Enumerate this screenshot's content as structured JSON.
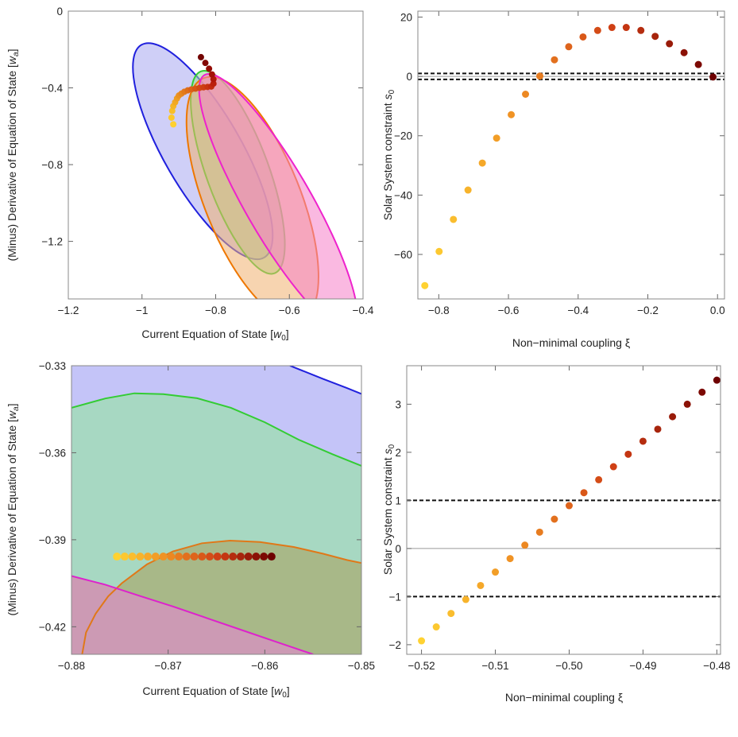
{
  "chart_data": [
    {
      "id": "p1",
      "type": "scatter",
      "xlabel": "Current Equation of State [w",
      "xlabel_sub": "0",
      "xlabel_end": "]",
      "ylabel": "(Minus) Derivative of Equation of State [w",
      "ylabel_sub": "a",
      "ylabel_end": "]",
      "xlim": [
        -1.2,
        -0.4
      ],
      "ylim": [
        -1.5,
        0
      ],
      "xticks": [
        -1.2,
        -1,
        -0.8,
        -0.6,
        -0.4
      ],
      "xtick_labels": [
        "−1.2",
        "−1",
        "−0.8",
        "−0.6",
        "−0.4"
      ],
      "yticks": [
        0,
        -0.4,
        -0.8,
        -1.2
      ],
      "ytick_labels": [
        "0",
        "−0.4",
        "−0.8",
        "−1.2"
      ],
      "grid": false,
      "contours": [
        {
          "name": "blue",
          "color": "#2020dd",
          "fill": "#a8a8f0",
          "cx": -0.835,
          "cy": -0.73,
          "rx": 0.105,
          "ry": 0.64,
          "angle_deg": 30
        },
        {
          "name": "green",
          "color": "#33cc33",
          "fill": "#99dd99",
          "cx": -0.74,
          "cy": -0.84,
          "rx": 0.085,
          "ry": 0.56,
          "angle_deg": 20
        },
        {
          "name": "orange",
          "color": "#ee7700",
          "fill": "#f0b070",
          "cx": -0.7,
          "cy": -0.98,
          "rx": 0.13,
          "ry": 0.68,
          "angle_deg": 22
        },
        {
          "name": "magenta",
          "color": "#ee22cc",
          "fill": "#f580c8",
          "cx": -0.63,
          "cy": -1.0,
          "rx": 0.09,
          "ry": 0.77,
          "angle_deg": 30
        }
      ],
      "points": [
        {
          "x": -0.915,
          "y": -0.59,
          "c": "#ffd030"
        },
        {
          "x": -0.92,
          "y": -0.555,
          "c": "#fdc82a"
        },
        {
          "x": -0.918,
          "y": -0.52,
          "c": "#f9bf28"
        },
        {
          "x": -0.915,
          "y": -0.495,
          "c": "#f5b526"
        },
        {
          "x": -0.91,
          "y": -0.475,
          "c": "#f2a924"
        },
        {
          "x": -0.905,
          "y": -0.455,
          "c": "#ee9e22"
        },
        {
          "x": -0.9,
          "y": -0.44,
          "c": "#ea9220"
        },
        {
          "x": -0.893,
          "y": -0.43,
          "c": "#e6861e"
        },
        {
          "x": -0.885,
          "y": -0.42,
          "c": "#e27a1c"
        },
        {
          "x": -0.876,
          "y": -0.413,
          "c": "#de6e1a"
        },
        {
          "x": -0.866,
          "y": -0.408,
          "c": "#da6218"
        },
        {
          "x": -0.855,
          "y": -0.404,
          "c": "#d65616"
        },
        {
          "x": -0.844,
          "y": -0.4,
          "c": "#d24a14"
        },
        {
          "x": -0.833,
          "y": -0.397,
          "c": "#ce3e12"
        },
        {
          "x": -0.822,
          "y": -0.395,
          "c": "#c83410"
        },
        {
          "x": -0.812,
          "y": -0.393,
          "c": "#c22a0e"
        },
        {
          "x": -0.806,
          "y": -0.378,
          "c": "#bb200c"
        },
        {
          "x": -0.806,
          "y": -0.355,
          "c": "#b1180a"
        },
        {
          "x": -0.81,
          "y": -0.33,
          "c": "#a41208"
        },
        {
          "x": -0.818,
          "y": -0.3,
          "c": "#940c06"
        },
        {
          "x": -0.828,
          "y": -0.27,
          "c": "#830804"
        },
        {
          "x": -0.84,
          "y": -0.24,
          "c": "#730402"
        }
      ]
    },
    {
      "id": "p2",
      "type": "scatter",
      "xlabel": "Non−minimal coupling ξ",
      "ylabel": "Solar System constraint ",
      "ylabel_italic": "s",
      "ylabel_sub": "0",
      "xlim": [
        -0.86,
        0.02
      ],
      "ylim": [
        -75,
        22
      ],
      "xticks": [
        -0.8,
        -0.6,
        -0.4,
        -0.2,
        0
      ],
      "xtick_labels": [
        "−0.8",
        "−0.6",
        "−0.4",
        "−0.2",
        "0.0"
      ],
      "yticks": [
        20,
        0,
        -20,
        -40,
        -60
      ],
      "ytick_labels": [
        "20",
        "0",
        "−20",
        "−40",
        "−60"
      ],
      "hlines_dashed": [
        1,
        -1
      ],
      "hlines_solid": [
        0
      ],
      "grid": false,
      "x": [
        -0.84,
        -0.799,
        -0.758,
        -0.716,
        -0.675,
        -0.634,
        -0.592,
        -0.551,
        -0.51,
        -0.468,
        -0.427,
        -0.386,
        -0.344,
        -0.303,
        -0.262,
        -0.22,
        -0.179,
        -0.138,
        -0.096,
        -0.055,
        -0.013
      ],
      "y": [
        -70.5,
        -59,
        -48.2,
        -38.3,
        -29.2,
        -20.8,
        -12.9,
        -6.0,
        0.1,
        5.6,
        10,
        13.3,
        15.5,
        16.5,
        16.5,
        15.5,
        13.5,
        11,
        8,
        4,
        -0.2
      ]
    },
    {
      "id": "p3",
      "type": "scatter",
      "xlabel": "Current Equation of State [w",
      "xlabel_sub": "0",
      "xlabel_end": "]",
      "ylabel": "(Minus) Derivative of Equation of State [w",
      "ylabel_sub": "a",
      "ylabel_end": "]",
      "xlim": [
        -0.88,
        -0.85
      ],
      "ylim": [
        -0.4295,
        -0.33
      ],
      "xticks": [
        -0.88,
        -0.87,
        -0.86,
        -0.85
      ],
      "xtick_labels": [
        "−0.88",
        "−0.87",
        "−0.86",
        "−0.85"
      ],
      "yticks": [
        -0.33,
        -0.36,
        -0.39,
        -0.42
      ],
      "ytick_labels": [
        "−0.33",
        "−0.36",
        "−0.39",
        "−0.42"
      ],
      "grid": false,
      "curves": [
        {
          "name": "blue",
          "color": "#2020dd",
          "fill": "#c4c4f8",
          "pts": [
            [
              -0.8574,
              -0.33
            ],
            [
              -0.854,
              -0.3345
            ],
            [
              -0.8515,
              -0.3377
            ],
            [
              -0.85,
              -0.3397
            ]
          ]
        },
        {
          "name": "green",
          "color": "#33cc33",
          "fill": "#a7d8c2",
          "pts": [
            [
              -0.88,
              -0.3445
            ],
            [
              -0.8765,
              -0.3413
            ],
            [
              -0.8735,
              -0.3395
            ],
            [
              -0.8705,
              -0.3398
            ],
            [
              -0.867,
              -0.3412
            ],
            [
              -0.8635,
              -0.3445
            ],
            [
              -0.86,
              -0.3495
            ],
            [
              -0.8565,
              -0.3555
            ],
            [
              -0.853,
              -0.3605
            ],
            [
              -0.85,
              -0.3645
            ]
          ]
        },
        {
          "name": "orange",
          "color": "#e07818",
          "fill": "#a8b888",
          "pts": [
            [
              -0.8789,
              -0.4295
            ],
            [
              -0.8785,
              -0.422
            ],
            [
              -0.8775,
              -0.4155
            ],
            [
              -0.8762,
              -0.4095
            ],
            [
              -0.8748,
              -0.405
            ],
            [
              -0.8722,
              -0.3985
            ],
            [
              -0.8695,
              -0.394
            ],
            [
              -0.8665,
              -0.3912
            ],
            [
              -0.8636,
              -0.3903
            ],
            [
              -0.8605,
              -0.3908
            ],
            [
              -0.857,
              -0.3925
            ],
            [
              -0.854,
              -0.3948
            ],
            [
              -0.8515,
              -0.397
            ],
            [
              -0.85,
              -0.398
            ]
          ]
        },
        {
          "name": "magenta",
          "color": "#dd22cc",
          "fill": "#cc9ab4",
          "pts": [
            [
              -0.88,
              -0.4025
            ],
            [
              -0.8765,
              -0.4055
            ],
            [
              -0.873,
              -0.4093
            ],
            [
              -0.8695,
              -0.413
            ],
            [
              -0.866,
              -0.417
            ],
            [
              -0.8625,
              -0.421
            ],
            [
              -0.859,
              -0.425
            ],
            [
              -0.855,
              -0.4295
            ]
          ]
        }
      ],
      "x": [
        -0.8753,
        -0.8745,
        -0.8737,
        -0.8729,
        -0.8721,
        -0.8713,
        -0.8705,
        -0.8697,
        -0.8689,
        -0.8681,
        -0.8673,
        -0.8665,
        -0.8657,
        -0.8649,
        -0.8641,
        -0.8633,
        -0.8625,
        -0.8617,
        -0.8609,
        -0.8601,
        -0.8593
      ],
      "y": [
        -0.3958,
        -0.3958,
        -0.3958,
        -0.3958,
        -0.3958,
        -0.3958,
        -0.3958,
        -0.3958,
        -0.3958,
        -0.3958,
        -0.3958,
        -0.3958,
        -0.3958,
        -0.3958,
        -0.3958,
        -0.3958,
        -0.3958,
        -0.3958,
        -0.3958,
        -0.3958,
        -0.3958
      ]
    },
    {
      "id": "p4",
      "type": "scatter",
      "xlabel": "Non−minimal coupling ξ",
      "ylabel": "Solar System constraint ",
      "ylabel_italic": "s",
      "ylabel_sub": "0",
      "xlim": [
        -0.522,
        -0.4795
      ],
      "ylim": [
        -2.2,
        3.8
      ],
      "xticks": [
        -0.52,
        -0.51,
        -0.5,
        -0.49,
        -0.48
      ],
      "xtick_labels": [
        "−0.52",
        "−0.51",
        "−0.50",
        "−0.49",
        "−0.48"
      ],
      "yticks": [
        3,
        2,
        1,
        0,
        -1,
        -2
      ],
      "ytick_labels": [
        "3",
        "2",
        "1",
        "0",
        "−1",
        "−2"
      ],
      "hlines_dashed": [
        1,
        -1
      ],
      "hlines_solid": [
        0
      ],
      "grid": false,
      "x": [
        -0.52,
        -0.518,
        -0.516,
        -0.514,
        -0.512,
        -0.51,
        -0.508,
        -0.506,
        -0.504,
        -0.502,
        -0.5,
        -0.498,
        -0.496,
        -0.494,
        -0.492,
        -0.49,
        -0.488,
        -0.486,
        -0.484,
        -0.482,
        -0.48
      ],
      "y": [
        -1.92,
        -1.63,
        -1.35,
        -1.06,
        -0.77,
        -0.49,
        -0.21,
        0.07,
        0.34,
        0.61,
        0.89,
        1.16,
        1.43,
        1.7,
        1.96,
        2.23,
        2.48,
        2.74,
        3.0,
        3.25,
        3.5
      ]
    }
  ]
}
